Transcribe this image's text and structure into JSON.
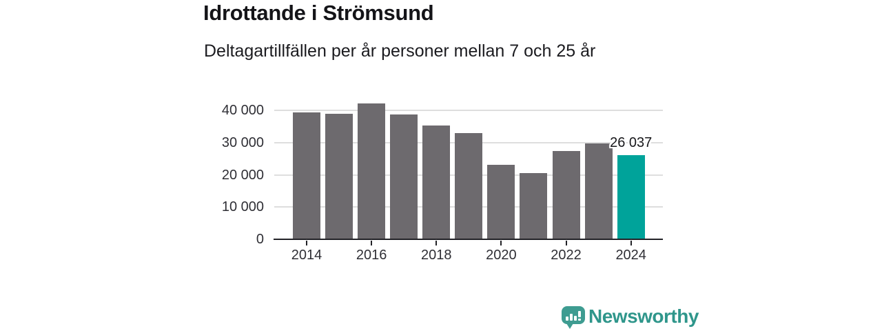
{
  "header": {
    "title": "Idrottande i Strömsund",
    "subtitle": "Deltagartillfällen per år personer mellan 7 och 25 år"
  },
  "chart_data": {
    "type": "bar",
    "categories": [
      "2014",
      "2015",
      "2016",
      "2017",
      "2018",
      "2019",
      "2020",
      "2021",
      "2022",
      "2023",
      "2024"
    ],
    "values": [
      39400,
      39100,
      42200,
      38800,
      35300,
      33100,
      23100,
      20500,
      27500,
      29700,
      26037
    ],
    "highlight": {
      "index": 10,
      "label": "26 037",
      "value": 26037
    },
    "yticks": [
      {
        "value": 0,
        "label": "0"
      },
      {
        "value": 10000,
        "label": "10 000"
      },
      {
        "value": 20000,
        "label": "20 000"
      },
      {
        "value": 30000,
        "label": "30 000"
      },
      {
        "value": 40000,
        "label": "40 000"
      }
    ],
    "xticks": [
      "2014",
      "2016",
      "2018",
      "2020",
      "2022",
      "2024"
    ],
    "ylim": [
      0,
      44300
    ],
    "grid": true,
    "legend": "none",
    "colors": {
      "bar": "#6d6a6e",
      "highlight": "#00a39a",
      "gridline": "#dedede",
      "axis": "#222227",
      "tick_text": "#2f2f35"
    }
  },
  "branding": {
    "label": "Newsworthy",
    "icon": "speech-bubble-bar-chart-icon",
    "text_color": "#2f968b",
    "icon_color": "#3e9c91"
  }
}
